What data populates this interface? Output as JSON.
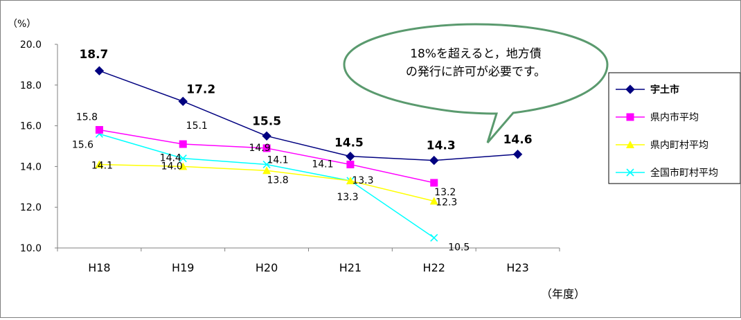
{
  "chart_data": {
    "type": "line",
    "categories": [
      "H18",
      "H19",
      "H20",
      "H21",
      "H22",
      "H23"
    ],
    "ylim": [
      10.0,
      20.0
    ],
    "yticks": [
      "20.0",
      "18.0",
      "16.0",
      "14.0",
      "12.0",
      "10.0"
    ],
    "ylabel": "（%）",
    "xlabel": "（年度）",
    "grid": false,
    "legend_position": "right",
    "callout_text": [
      "18%を超えると，地方債",
      "の発行に許可が必要です。"
    ],
    "series": [
      {
        "name": "宇土市",
        "values": [
          18.7,
          17.2,
          15.5,
          14.5,
          14.3,
          14.6
        ],
        "labels": [
          "18.7",
          "17.2",
          "15.5",
          "14.5",
          "14.3",
          "14.6"
        ],
        "color": "#000080",
        "marker": "diamond"
      },
      {
        "name": "県内市平均",
        "values": [
          15.8,
          15.1,
          14.9,
          14.1,
          13.2,
          null
        ],
        "labels": [
          "15.8",
          "15.1",
          "14.9",
          "14.1",
          "13.2",
          ""
        ],
        "color": "#ff00ff",
        "marker": "square"
      },
      {
        "name": "県内町村平均",
        "values": [
          14.1,
          14.0,
          13.8,
          13.3,
          12.3,
          null
        ],
        "labels": [
          "14.1",
          "14.0",
          "13.8",
          "13.3",
          "12.3",
          ""
        ],
        "color": "#ffff00",
        "marker": "triangle"
      },
      {
        "name": "全国市町村平均",
        "values": [
          15.6,
          14.4,
          14.1,
          13.3,
          10.5,
          null
        ],
        "labels": [
          "15.6",
          "14.4",
          "14.1",
          "13.3",
          "10.5",
          ""
        ],
        "color": "#00ffff",
        "marker": "x"
      }
    ]
  }
}
